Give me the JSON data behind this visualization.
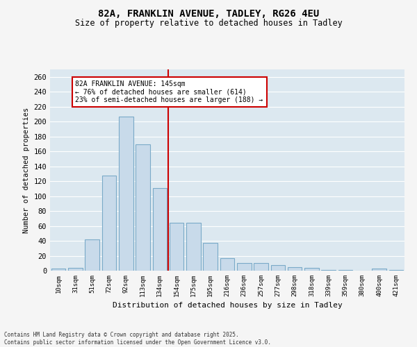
{
  "title_line1": "82A, FRANKLIN AVENUE, TADLEY, RG26 4EU",
  "title_line2": "Size of property relative to detached houses in Tadley",
  "xlabel": "Distribution of detached houses by size in Tadley",
  "ylabel": "Number of detached properties",
  "categories": [
    "10sqm",
    "31sqm",
    "51sqm",
    "72sqm",
    "92sqm",
    "113sqm",
    "134sqm",
    "154sqm",
    "175sqm",
    "195sqm",
    "216sqm",
    "236sqm",
    "257sqm",
    "277sqm",
    "298sqm",
    "318sqm",
    "339sqm",
    "359sqm",
    "380sqm",
    "400sqm",
    "421sqm"
  ],
  "values": [
    3,
    4,
    42,
    128,
    207,
    169,
    111,
    64,
    64,
    37,
    17,
    10,
    10,
    7,
    5,
    4,
    1,
    1,
    0,
    3,
    1
  ],
  "bar_color": "#c8daea",
  "bar_edge_color": "#7aaac8",
  "vline_color": "#cc0000",
  "annotation_box_text": "82A FRANKLIN AVENUE: 145sqm\n← 76% of detached houses are smaller (614)\n23% of semi-detached houses are larger (188) →",
  "ylim": [
    0,
    270
  ],
  "yticks": [
    0,
    20,
    40,
    60,
    80,
    100,
    120,
    140,
    160,
    180,
    200,
    220,
    240,
    260
  ],
  "plot_bg_color": "#dce8f0",
  "fig_bg_color": "#f5f5f5",
  "grid_color": "#ffffff",
  "footer_line1": "Contains HM Land Registry data © Crown copyright and database right 2025.",
  "footer_line2": "Contains public sector information licensed under the Open Government Licence v3.0."
}
